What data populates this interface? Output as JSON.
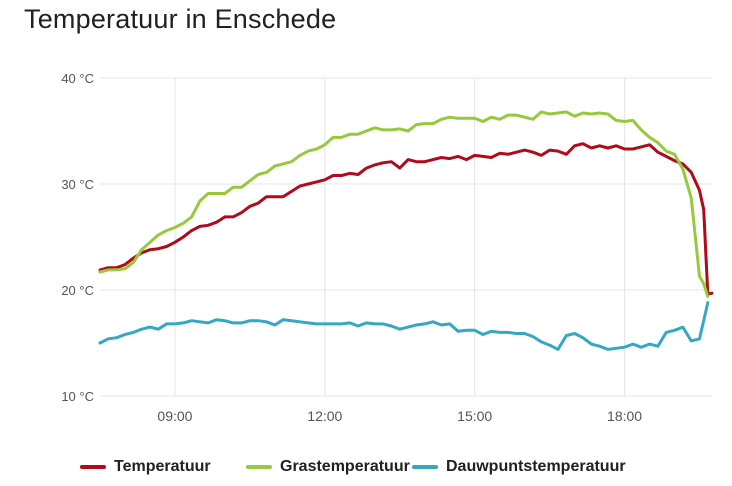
{
  "card": {
    "title": "Temperatuur in Enschede"
  },
  "chart_data": {
    "type": "line",
    "title": "Temperatuur in Enschede",
    "xlabel": "",
    "ylabel": "",
    "y_unit": "°C",
    "ylim": [
      10,
      40
    ],
    "xlim": [
      "07:30",
      "19:45"
    ],
    "y_ticks": [
      {
        "value": 10,
        "label": "10 °C"
      },
      {
        "value": 20,
        "label": "20 °C"
      },
      {
        "value": 30,
        "label": "30 °C"
      },
      {
        "value": 40,
        "label": "40 °C"
      }
    ],
    "x_ticks": [
      {
        "value": "09:00",
        "label": "09:00"
      },
      {
        "value": "12:00",
        "label": "12:00"
      },
      {
        "value": "15:00",
        "label": "15:00"
      },
      {
        "value": "18:00",
        "label": "18:00"
      }
    ],
    "grid": true,
    "legend_position": "bottom",
    "series": [
      {
        "name": "Temperatuur",
        "color": "#b00a1b",
        "points": [
          [
            "07:30",
            21.9
          ],
          [
            "07:40",
            22.1
          ],
          [
            "07:50",
            22.1
          ],
          [
            "08:00",
            22.4
          ],
          [
            "08:10",
            23.0
          ],
          [
            "08:20",
            23.5
          ],
          [
            "08:30",
            23.8
          ],
          [
            "08:40",
            23.9
          ],
          [
            "08:50",
            24.1
          ],
          [
            "09:00",
            24.5
          ],
          [
            "09:10",
            25.0
          ],
          [
            "09:20",
            25.6
          ],
          [
            "09:30",
            26.0
          ],
          [
            "09:40",
            26.1
          ],
          [
            "09:50",
            26.4
          ],
          [
            "10:00",
            26.9
          ],
          [
            "10:10",
            26.9
          ],
          [
            "10:20",
            27.3
          ],
          [
            "10:30",
            27.9
          ],
          [
            "10:40",
            28.2
          ],
          [
            "10:50",
            28.8
          ],
          [
            "11:00",
            28.8
          ],
          [
            "11:10",
            28.8
          ],
          [
            "11:20",
            29.3
          ],
          [
            "11:30",
            29.8
          ],
          [
            "11:40",
            30.0
          ],
          [
            "11:50",
            30.2
          ],
          [
            "12:00",
            30.4
          ],
          [
            "12:10",
            30.8
          ],
          [
            "12:20",
            30.8
          ],
          [
            "12:30",
            31.0
          ],
          [
            "12:40",
            30.9
          ],
          [
            "12:50",
            31.5
          ],
          [
            "13:00",
            31.8
          ],
          [
            "13:10",
            32.0
          ],
          [
            "13:20",
            32.1
          ],
          [
            "13:30",
            31.5
          ],
          [
            "13:40",
            32.3
          ],
          [
            "13:50",
            32.1
          ],
          [
            "14:00",
            32.1
          ],
          [
            "14:10",
            32.3
          ],
          [
            "14:20",
            32.5
          ],
          [
            "14:30",
            32.4
          ],
          [
            "14:40",
            32.6
          ],
          [
            "14:50",
            32.3
          ],
          [
            "15:00",
            32.7
          ],
          [
            "15:10",
            32.6
          ],
          [
            "15:20",
            32.5
          ],
          [
            "15:30",
            32.9
          ],
          [
            "15:40",
            32.8
          ],
          [
            "15:50",
            33.0
          ],
          [
            "16:00",
            33.2
          ],
          [
            "16:10",
            33.0
          ],
          [
            "16:20",
            32.7
          ],
          [
            "16:30",
            33.2
          ],
          [
            "16:40",
            33.1
          ],
          [
            "16:50",
            32.8
          ],
          [
            "17:00",
            33.6
          ],
          [
            "17:10",
            33.8
          ],
          [
            "17:20",
            33.4
          ],
          [
            "17:30",
            33.6
          ],
          [
            "17:40",
            33.4
          ],
          [
            "17:50",
            33.6
          ],
          [
            "18:00",
            33.3
          ],
          [
            "18:10",
            33.3
          ],
          [
            "18:20",
            33.5
          ],
          [
            "18:30",
            33.7
          ],
          [
            "18:40",
            33.0
          ],
          [
            "18:50",
            32.6
          ],
          [
            "19:00",
            32.2
          ],
          [
            "19:10",
            31.9
          ],
          [
            "19:20",
            31.1
          ],
          [
            "19:30",
            29.4
          ],
          [
            "19:35",
            27.6
          ],
          [
            "19:40",
            19.6
          ],
          [
            "19:45",
            19.7
          ]
        ]
      },
      {
        "name": "Grastemperatuur",
        "color": "#97c93d",
        "points": [
          [
            "07:30",
            21.7
          ],
          [
            "07:40",
            21.9
          ],
          [
            "07:50",
            21.9
          ],
          [
            "08:00",
            22.0
          ],
          [
            "08:10",
            22.6
          ],
          [
            "08:20",
            23.8
          ],
          [
            "08:30",
            24.5
          ],
          [
            "08:40",
            25.2
          ],
          [
            "08:50",
            25.6
          ],
          [
            "09:00",
            25.9
          ],
          [
            "09:10",
            26.3
          ],
          [
            "09:20",
            26.9
          ],
          [
            "09:30",
            28.4
          ],
          [
            "09:40",
            29.1
          ],
          [
            "09:50",
            29.1
          ],
          [
            "10:00",
            29.1
          ],
          [
            "10:10",
            29.7
          ],
          [
            "10:20",
            29.7
          ],
          [
            "10:30",
            30.3
          ],
          [
            "10:40",
            30.9
          ],
          [
            "10:50",
            31.1
          ],
          [
            "11:00",
            31.7
          ],
          [
            "11:10",
            31.9
          ],
          [
            "11:20",
            32.1
          ],
          [
            "11:30",
            32.7
          ],
          [
            "11:40",
            33.1
          ],
          [
            "11:50",
            33.3
          ],
          [
            "12:00",
            33.7
          ],
          [
            "12:10",
            34.4
          ],
          [
            "12:20",
            34.4
          ],
          [
            "12:30",
            34.7
          ],
          [
            "12:40",
            34.7
          ],
          [
            "12:50",
            35.0
          ],
          [
            "13:00",
            35.3
          ],
          [
            "13:10",
            35.1
          ],
          [
            "13:20",
            35.1
          ],
          [
            "13:30",
            35.2
          ],
          [
            "13:40",
            35.0
          ],
          [
            "13:50",
            35.6
          ],
          [
            "14:00",
            35.7
          ],
          [
            "14:10",
            35.7
          ],
          [
            "14:20",
            36.1
          ],
          [
            "14:30",
            36.3
          ],
          [
            "14:40",
            36.2
          ],
          [
            "14:50",
            36.2
          ],
          [
            "15:00",
            36.2
          ],
          [
            "15:10",
            35.9
          ],
          [
            "15:20",
            36.3
          ],
          [
            "15:30",
            36.1
          ],
          [
            "15:40",
            36.5
          ],
          [
            "15:50",
            36.5
          ],
          [
            "16:00",
            36.3
          ],
          [
            "16:10",
            36.1
          ],
          [
            "16:20",
            36.8
          ],
          [
            "16:30",
            36.6
          ],
          [
            "16:40",
            36.7
          ],
          [
            "16:50",
            36.8
          ],
          [
            "17:00",
            36.4
          ],
          [
            "17:10",
            36.7
          ],
          [
            "17:20",
            36.6
          ],
          [
            "17:30",
            36.7
          ],
          [
            "17:40",
            36.6
          ],
          [
            "17:50",
            36.0
          ],
          [
            "18:00",
            35.9
          ],
          [
            "18:10",
            36.0
          ],
          [
            "18:20",
            35.1
          ],
          [
            "18:30",
            34.4
          ],
          [
            "18:40",
            33.9
          ],
          [
            "18:50",
            33.1
          ],
          [
            "19:00",
            32.8
          ],
          [
            "19:10",
            31.4
          ],
          [
            "19:20",
            28.7
          ],
          [
            "19:30",
            21.3
          ],
          [
            "19:35",
            20.6
          ],
          [
            "19:40",
            19.4
          ]
        ]
      },
      {
        "name": "Dauwpuntstemperatuur",
        "color": "#34a7c2",
        "points": [
          [
            "07:30",
            15.0
          ],
          [
            "07:40",
            15.4
          ],
          [
            "07:50",
            15.5
          ],
          [
            "08:00",
            15.8
          ],
          [
            "08:10",
            16.0
          ],
          [
            "08:20",
            16.3
          ],
          [
            "08:30",
            16.5
          ],
          [
            "08:40",
            16.3
          ],
          [
            "08:50",
            16.8
          ],
          [
            "09:00",
            16.8
          ],
          [
            "09:10",
            16.9
          ],
          [
            "09:20",
            17.1
          ],
          [
            "09:30",
            17.0
          ],
          [
            "09:40",
            16.9
          ],
          [
            "09:50",
            17.2
          ],
          [
            "10:00",
            17.1
          ],
          [
            "10:10",
            16.9
          ],
          [
            "10:20",
            16.9
          ],
          [
            "10:30",
            17.1
          ],
          [
            "10:40",
            17.1
          ],
          [
            "10:50",
            17.0
          ],
          [
            "11:00",
            16.7
          ],
          [
            "11:10",
            17.2
          ],
          [
            "11:20",
            17.1
          ],
          [
            "11:30",
            17.0
          ],
          [
            "11:40",
            16.9
          ],
          [
            "11:50",
            16.8
          ],
          [
            "12:00",
            16.8
          ],
          [
            "12:10",
            16.8
          ],
          [
            "12:20",
            16.8
          ],
          [
            "12:30",
            16.9
          ],
          [
            "12:40",
            16.6
          ],
          [
            "12:50",
            16.9
          ],
          [
            "13:00",
            16.8
          ],
          [
            "13:10",
            16.8
          ],
          [
            "13:20",
            16.6
          ],
          [
            "13:30",
            16.3
          ],
          [
            "13:40",
            16.5
          ],
          [
            "13:50",
            16.7
          ],
          [
            "14:00",
            16.8
          ],
          [
            "14:10",
            17.0
          ],
          [
            "14:20",
            16.7
          ],
          [
            "14:30",
            16.8
          ],
          [
            "14:40",
            16.1
          ],
          [
            "14:50",
            16.2
          ],
          [
            "15:00",
            16.2
          ],
          [
            "15:10",
            15.8
          ],
          [
            "15:20",
            16.1
          ],
          [
            "15:30",
            16.0
          ],
          [
            "15:40",
            16.0
          ],
          [
            "15:50",
            15.9
          ],
          [
            "16:00",
            15.9
          ],
          [
            "16:10",
            15.6
          ],
          [
            "16:20",
            15.1
          ],
          [
            "16:30",
            14.8
          ],
          [
            "16:40",
            14.4
          ],
          [
            "16:50",
            15.7
          ],
          [
            "17:00",
            15.9
          ],
          [
            "17:10",
            15.5
          ],
          [
            "17:20",
            14.9
          ],
          [
            "17:30",
            14.7
          ],
          [
            "17:40",
            14.4
          ],
          [
            "17:50",
            14.5
          ],
          [
            "18:00",
            14.6
          ],
          [
            "18:10",
            14.9
          ],
          [
            "18:20",
            14.6
          ],
          [
            "18:30",
            14.9
          ],
          [
            "18:40",
            14.7
          ],
          [
            "18:50",
            16.0
          ],
          [
            "19:00",
            16.2
          ],
          [
            "19:10",
            16.5
          ],
          [
            "19:20",
            15.2
          ],
          [
            "19:30",
            15.4
          ],
          [
            "19:40",
            18.8
          ]
        ]
      }
    ]
  }
}
